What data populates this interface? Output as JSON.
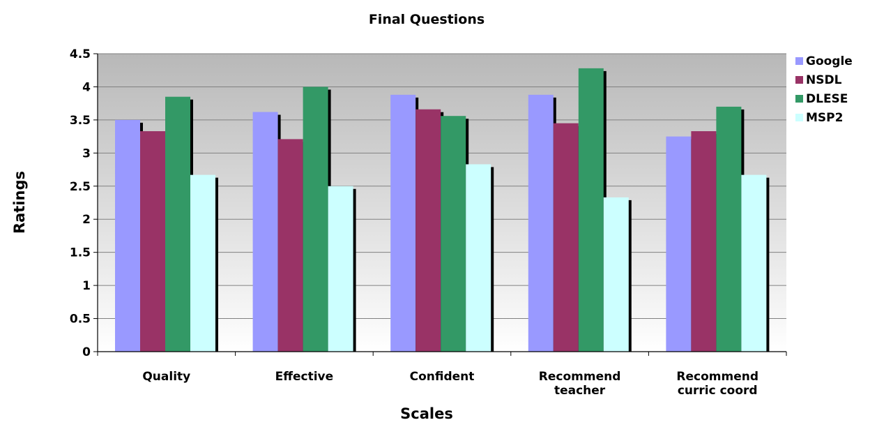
{
  "chart_data": {
    "type": "bar",
    "title": "Final Questions",
    "xlabel": "Scales",
    "ylabel": "Ratings",
    "ylim": [
      0,
      4.5
    ],
    "yticks": [
      "0",
      "0.5",
      "1",
      "1.5",
      "2",
      "2.5",
      "3",
      "3.5",
      "4",
      "4.5"
    ],
    "categories": [
      [
        "Quality"
      ],
      [
        "Effective"
      ],
      [
        "Confident"
      ],
      [
        "Recommend",
        "teacher"
      ],
      [
        "Recommend",
        "curric coord"
      ]
    ],
    "series": [
      {
        "name": "Google",
        "color": "#9999ff",
        "values": [
          3.5,
          3.62,
          3.88,
          3.88,
          3.25
        ]
      },
      {
        "name": "NSDL",
        "color": "#993366",
        "values": [
          3.33,
          3.21,
          3.66,
          3.45,
          3.33
        ]
      },
      {
        "name": "DLESE",
        "color": "#339966",
        "values": [
          3.85,
          4.0,
          3.56,
          4.28,
          3.7
        ]
      },
      {
        "name": "MSP2",
        "color": "#ccffff",
        "values": [
          2.67,
          2.5,
          2.83,
          2.33,
          2.67
        ]
      }
    ],
    "grid": true,
    "legend_position": "right"
  }
}
